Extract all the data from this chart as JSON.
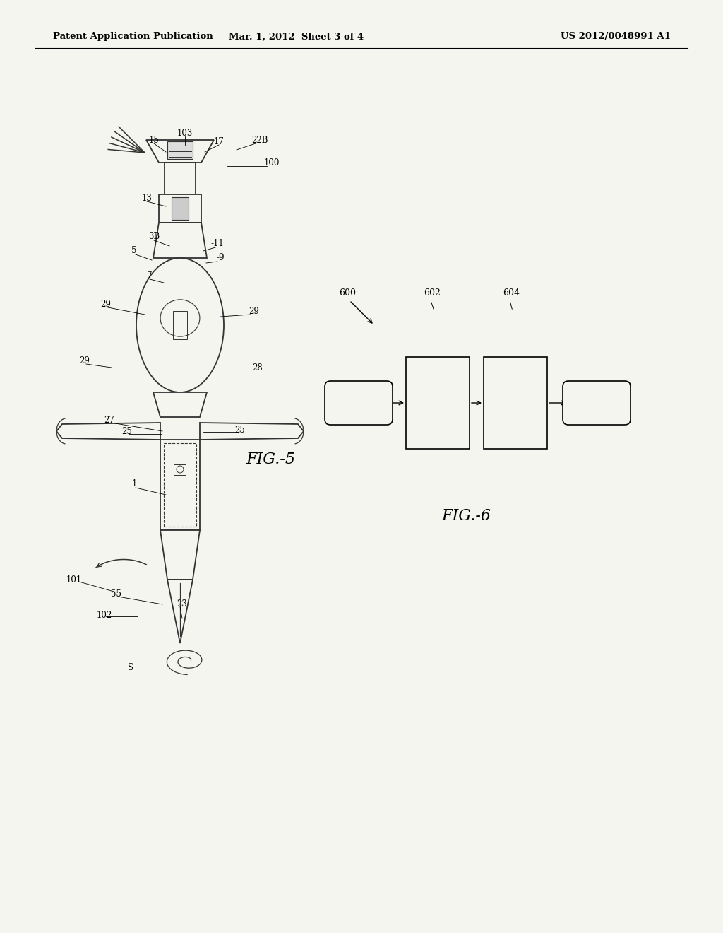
{
  "bg_color": "#f5f5f0",
  "header_left": "Patent Application Publication",
  "header_mid": "Mar. 1, 2012  Sheet 3 of 4",
  "header_right": "US 2012/0048991 A1",
  "fig5_label": "FIG.-5",
  "fig6_label": "FIG.-6"
}
